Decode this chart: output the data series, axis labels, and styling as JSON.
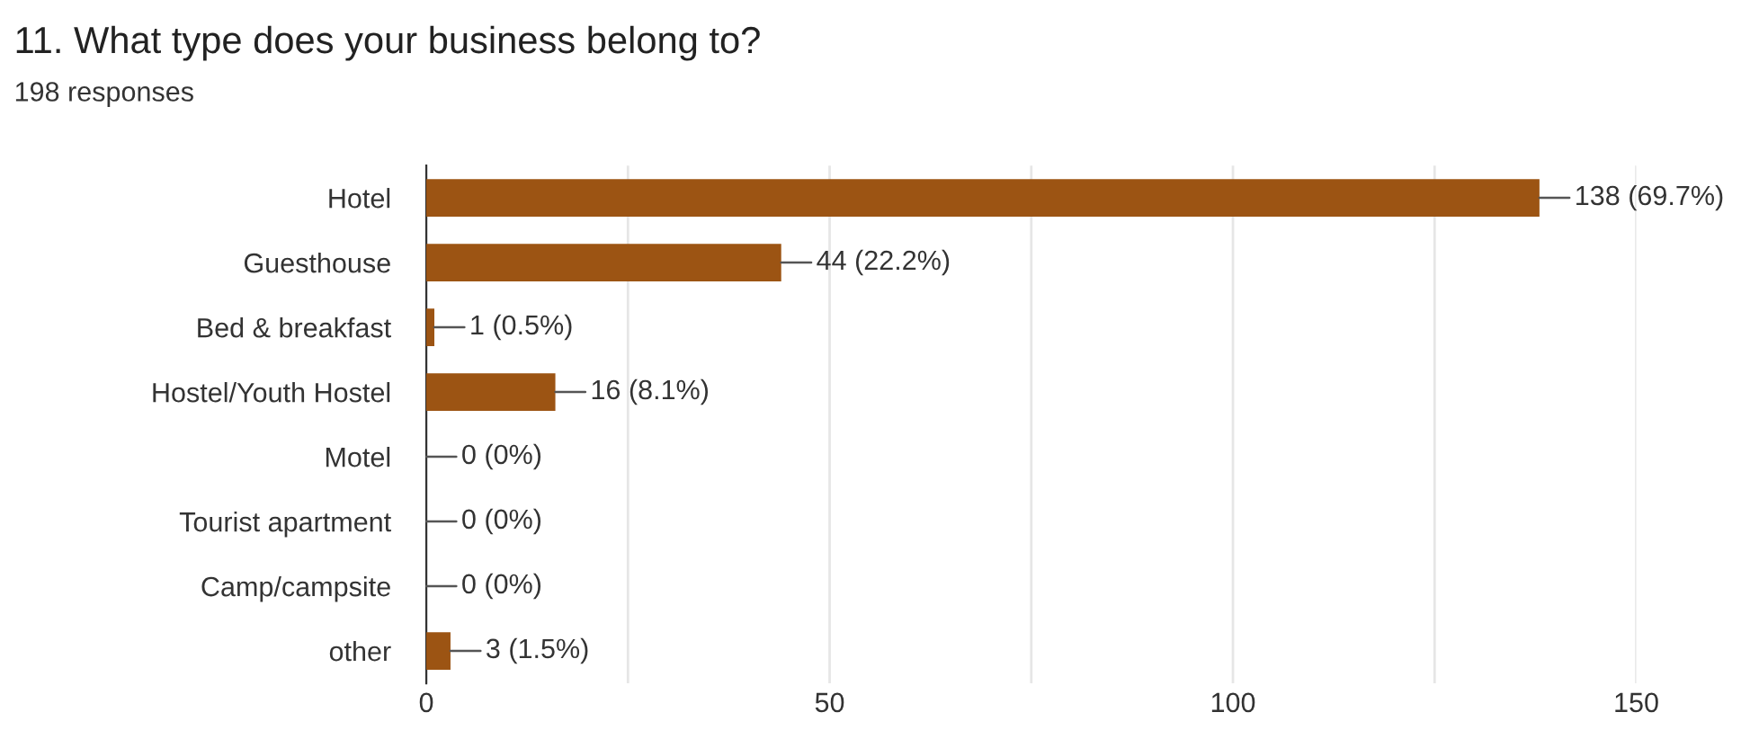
{
  "chart_data": {
    "type": "bar",
    "orientation": "horizontal",
    "title": "11. What type does your business belong to?",
    "subtitle": "198 responses",
    "categories": [
      "Hotel",
      "Guesthouse",
      "Bed & breakfast",
      "Hostel/Youth Hostel",
      "Motel",
      "Tourist apartment",
      "Camp/campsite",
      "other"
    ],
    "values": [
      138,
      44,
      1,
      16,
      0,
      0,
      0,
      3
    ],
    "value_labels": [
      "138 (69.7%)",
      "44 (22.2%)",
      "1 (0.5%)",
      "16 (8.1%)",
      "0 (0%)",
      "0 (0%)",
      "0 (0%)",
      "3 (1.5%)"
    ],
    "color": "#9c5413",
    "xlim": [
      0,
      150
    ],
    "xticks": [
      0,
      {
        "value": 25,
        "label": null
      },
      50,
      {
        "value": 75,
        "label": null
      },
      100,
      {
        "value": 125,
        "label": null
      },
      150
    ],
    "grid": "x",
    "legend": false
  }
}
